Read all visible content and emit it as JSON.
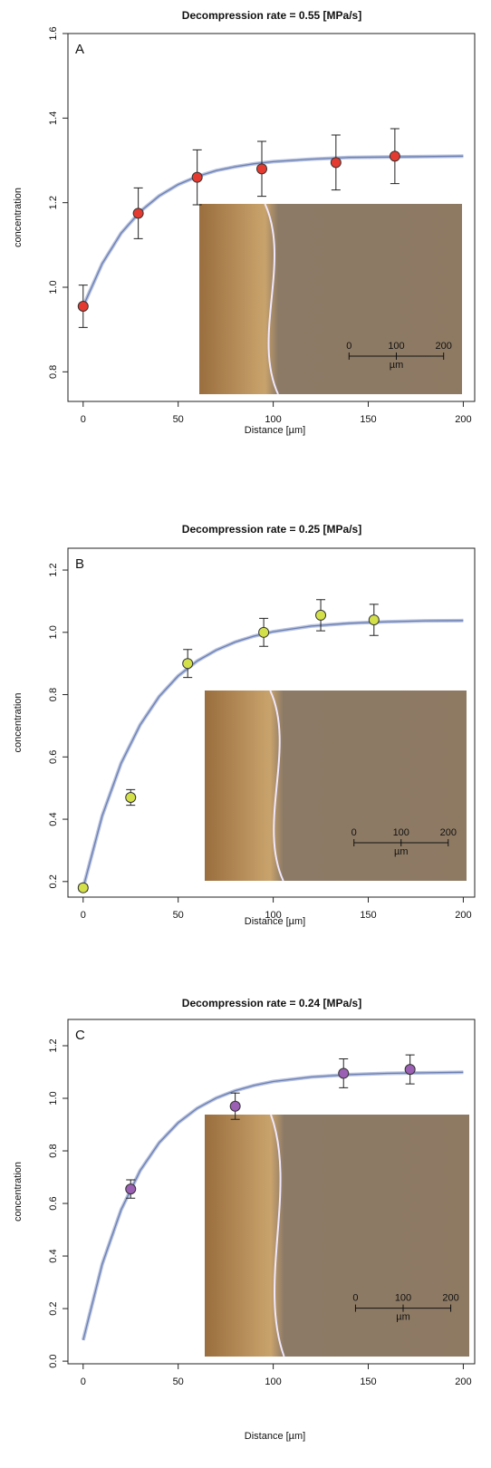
{
  "chart_data": [
    {
      "type": "scatter",
      "title": "Decompression rate =  0.55  [MPa/s]",
      "panel_label": "A",
      "xlabel": "Distance [µm]",
      "ylabel": "concentration",
      "x": [
        0,
        29,
        60,
        94,
        133,
        164
      ],
      "values": [
        0.955,
        1.175,
        1.26,
        1.28,
        1.295,
        1.31
      ],
      "errors": [
        0.05,
        0.06,
        0.065,
        0.065,
        0.065,
        0.065
      ],
      "color": "#e53a2f",
      "fit": {
        "color": "#6b7fb5",
        "x": [
          0,
          10,
          20,
          30,
          40,
          50,
          60,
          70,
          80,
          90,
          100,
          120,
          140,
          160,
          180,
          200
        ],
        "values": [
          0.955,
          1.056,
          1.128,
          1.179,
          1.216,
          1.243,
          1.262,
          1.276,
          1.285,
          1.292,
          1.297,
          1.303,
          1.307,
          1.308,
          1.309,
          1.31
        ]
      },
      "xlim": [
        -8,
        206
      ],
      "ylim": [
        0.73,
        1.6
      ],
      "xticks": [
        0,
        50,
        100,
        150,
        200
      ],
      "yticks": [
        {
          "value": 0.8,
          "label": "0.8"
        },
        {
          "value": 1.0,
          "label": "1.0"
        },
        {
          "value": 1.2,
          "label": "1.2"
        },
        {
          "value": 1.4,
          "label": "1.4"
        },
        {
          "value": 1.6,
          "label": "1.6"
        }
      ],
      "inset_scale": {
        "ticks": [
          0,
          100,
          200
        ],
        "unit": "µm"
      }
    },
    {
      "type": "scatter",
      "title": "Decompression rate =  0.25  [MPa/s]",
      "panel_label": "B",
      "xlabel": "Distance [µm]",
      "ylabel": "concentration",
      "x": [
        0,
        25,
        55,
        95,
        125,
        153
      ],
      "values": [
        0.18,
        0.47,
        0.9,
        1.0,
        1.055,
        1.04
      ],
      "errors": [
        0.01,
        0.025,
        0.045,
        0.045,
        0.05,
        0.05
      ],
      "color": "#d4e04a",
      "fit": {
        "color": "#6b7fb5",
        "x": [
          0,
          10,
          20,
          30,
          40,
          50,
          60,
          70,
          80,
          90,
          100,
          120,
          140,
          160,
          180,
          200
        ],
        "values": [
          0.18,
          0.411,
          0.58,
          0.703,
          0.794,
          0.86,
          0.908,
          0.943,
          0.969,
          0.988,
          1.002,
          1.02,
          1.029,
          1.034,
          1.037,
          1.038
        ]
      },
      "xlim": [
        -8,
        206
      ],
      "ylim": [
        0.15,
        1.27
      ],
      "xticks": [
        0,
        50,
        100,
        150,
        200
      ],
      "yticks": [
        0.2,
        0.4,
        0.6,
        0.8,
        {
          "value": 1.0,
          "label": "1.0"
        },
        1.2
      ],
      "inset_scale": {
        "ticks": [
          0,
          100,
          200
        ],
        "unit": "µm"
      }
    },
    {
      "type": "scatter",
      "title": "Decompression rate =  0.24  [MPa/s]",
      "panel_label": "C",
      "xlabel": "Distance [µm]",
      "ylabel": "concentration",
      "x": [
        25,
        80,
        137,
        172
      ],
      "values": [
        0.655,
        0.97,
        1.095,
        1.11
      ],
      "errors": [
        0.035,
        0.05,
        0.055,
        0.055
      ],
      "color": "#9b5fb3",
      "fit": {
        "color": "#6b7fb5",
        "x": [
          0,
          10,
          20,
          30,
          40,
          50,
          60,
          70,
          80,
          90,
          100,
          120,
          140,
          160,
          180,
          200
        ],
        "values": [
          0.08,
          0.369,
          0.576,
          0.725,
          0.831,
          0.907,
          0.962,
          1.001,
          1.029,
          1.049,
          1.064,
          1.081,
          1.09,
          1.095,
          1.097,
          1.099
        ]
      },
      "xlim": [
        -8,
        206
      ],
      "ylim": [
        -0.01,
        1.3
      ],
      "xticks": [
        0,
        50,
        100,
        150,
        200
      ],
      "yticks": [
        {
          "value": 0,
          "label": "0.0"
        },
        0.2,
        0.4,
        0.6,
        0.8,
        {
          "value": 1.0,
          "label": "1.0"
        },
        1.2
      ],
      "inset_scale": {
        "ticks": [
          0,
          100,
          200
        ],
        "unit": "µm"
      }
    }
  ]
}
